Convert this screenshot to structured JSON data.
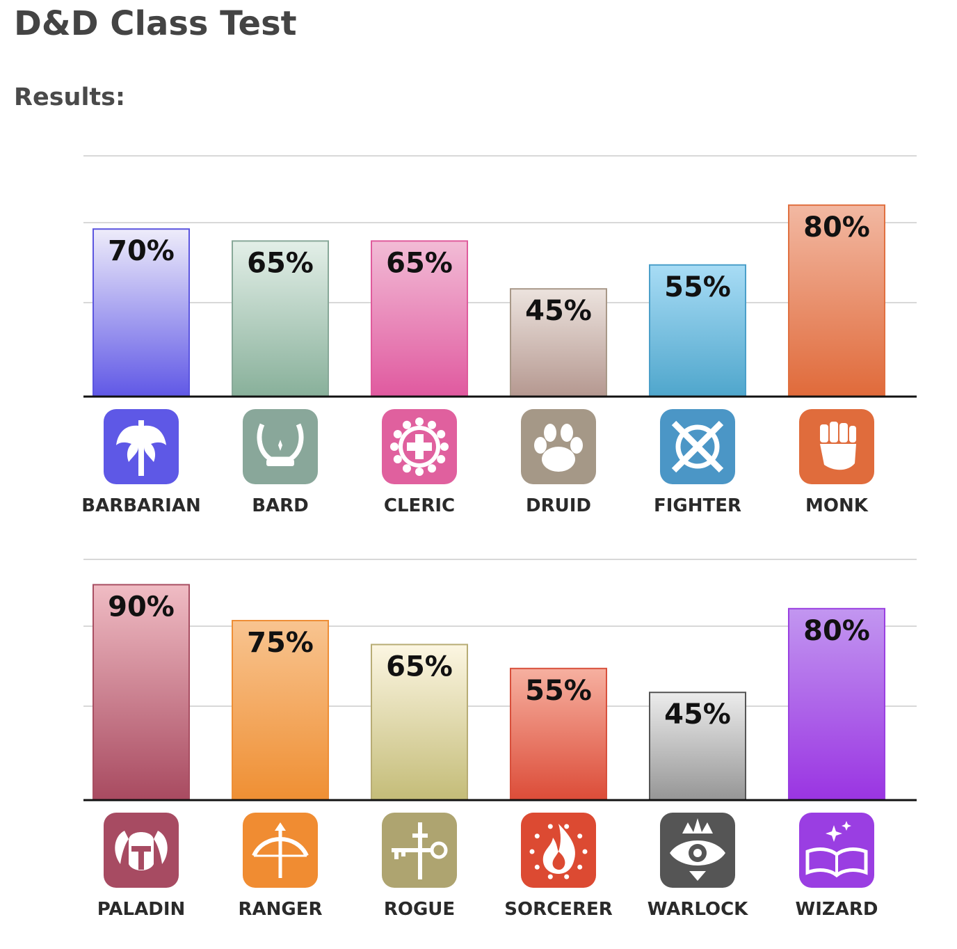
{
  "page": {
    "title": "D&D Class Test",
    "results_label": "Results:"
  },
  "chart_data": [
    {
      "type": "bar",
      "categories": [
        "BARBARIAN",
        "BARD",
        "CLERIC",
        "DRUID",
        "FIGHTER",
        "MONK"
      ],
      "values": [
        70,
        65,
        65,
        45,
        55,
        80
      ],
      "value_labels": [
        "70%",
        "65%",
        "65%",
        "45%",
        "55%",
        "80%"
      ],
      "icons": [
        "double-axe-icon",
        "lyre-icon",
        "holy-cross-icon",
        "paw-icon",
        "crossed-swords-shield-icon",
        "fist-icon"
      ],
      "colors": [
        {
          "top": "#eeecfa",
          "bottom": "#6058e6",
          "border": "#5b55e0",
          "icon": "#5e58e6"
        },
        {
          "top": "#e3efe8",
          "bottom": "#88b09a",
          "border": "#87a898",
          "icon": "#89a79a"
        },
        {
          "top": "#f2bcd6",
          "bottom": "#e0599f",
          "border": "#df5b9c",
          "icon": "#e0609e"
        },
        {
          "top": "#ece3de",
          "bottom": "#b59890",
          "border": "#a89888",
          "icon": "#a59887"
        },
        {
          "top": "#a8dcf5",
          "bottom": "#4fa6cc",
          "border": "#4b9fc9",
          "icon": "#4b96c6"
        },
        {
          "top": "#f2b8a2",
          "bottom": "#e06a3a",
          "border": "#e07040",
          "icon": "#e06c3c"
        }
      ],
      "ylim": [
        0,
        100
      ],
      "grid": true
    },
    {
      "type": "bar",
      "categories": [
        "PALADIN",
        "RANGER",
        "ROGUE",
        "SORCERER",
        "WARLOCK",
        "WIZARD"
      ],
      "values": [
        90,
        75,
        65,
        55,
        45,
        80
      ],
      "value_labels": [
        "90%",
        "75%",
        "65%",
        "55%",
        "45%",
        "80%"
      ],
      "icons": [
        "winged-helmet-icon",
        "bow-arrow-icon",
        "dagger-key-icon",
        "flame-icon",
        "eye-crown-icon",
        "spellbook-icon"
      ],
      "colors": [
        {
          "top": "#f0bcc4",
          "bottom": "#a84a60",
          "border": "#a84e62",
          "icon": "#a74b62"
        },
        {
          "top": "#f8c490",
          "bottom": "#ef8f33",
          "border": "#ee8e36",
          "icon": "#f08c32"
        },
        {
          "top": "#fcf6e2",
          "bottom": "#c4bc78",
          "border": "#b7ac74",
          "icon": "#aea470"
        },
        {
          "top": "#f6b0a0",
          "bottom": "#dc4c38",
          "border": "#d8503c",
          "icon": "#dc4a32"
        },
        {
          "top": "#ececec",
          "bottom": "#969696",
          "border": "#555555",
          "icon": "#555555"
        },
        {
          "top": "#c296f0",
          "bottom": "#9a34e2",
          "border": "#9a40e0",
          "icon": "#9a3ee2"
        }
      ],
      "ylim": [
        0,
        100
      ],
      "grid": true
    }
  ]
}
